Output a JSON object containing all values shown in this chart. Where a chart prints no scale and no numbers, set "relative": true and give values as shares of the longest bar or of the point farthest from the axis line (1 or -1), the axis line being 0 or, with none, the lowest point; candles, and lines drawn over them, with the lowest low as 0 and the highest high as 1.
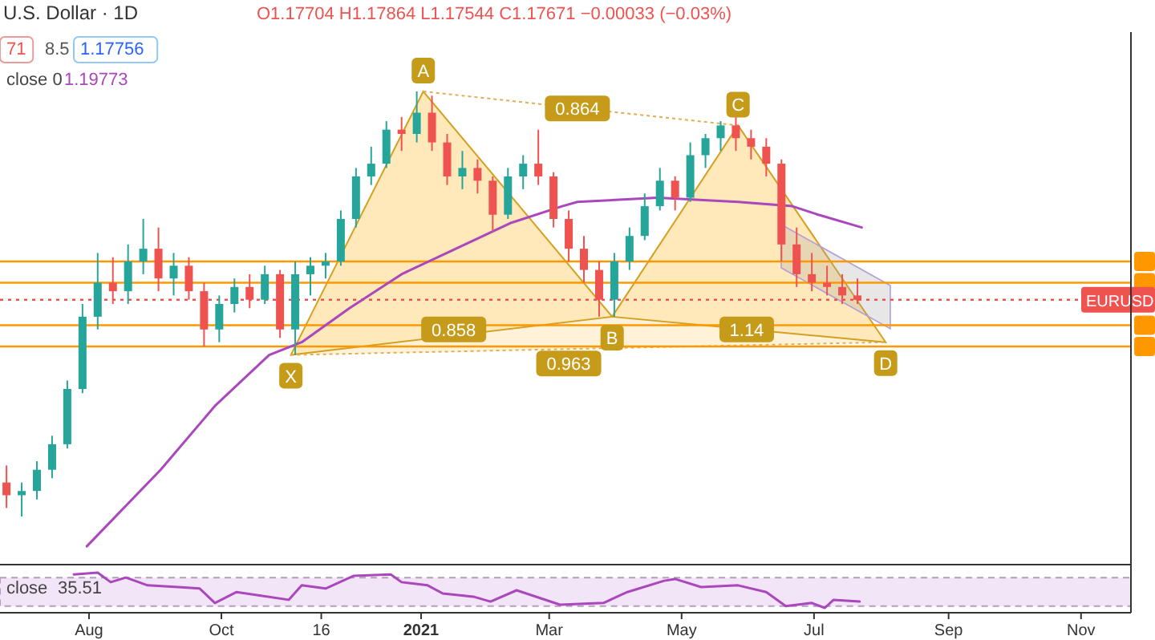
{
  "chart_data": [
    {
      "type": "candlestick",
      "title": "U.S. Dollar · 1D",
      "relative": true,
      "tick_labels": false,
      "xlim": [
        "2020-06-21",
        "2021-11-24"
      ],
      "x": [
        "2020-06-24",
        "2020-07-01",
        "2020-07-08",
        "2020-07-15",
        "2020-07-22",
        "2020-07-29",
        "2020-08-05",
        "2020-08-12",
        "2020-08-19",
        "2020-08-26",
        "2020-09-02",
        "2020-09-09",
        "2020-09-16",
        "2020-09-23",
        "2020-09-30",
        "2020-10-07",
        "2020-10-14",
        "2020-10-21",
        "2020-10-28",
        "2020-11-04",
        "2020-11-11",
        "2020-11-18",
        "2020-11-25",
        "2020-12-02",
        "2020-12-09",
        "2020-12-16",
        "2020-12-23",
        "2020-12-30",
        "2021-01-06",
        "2021-01-13",
        "2021-01-20",
        "2021-01-27",
        "2021-02-03",
        "2021-02-10",
        "2021-02-17",
        "2021-02-24",
        "2021-03-03",
        "2021-03-10",
        "2021-03-17",
        "2021-03-24",
        "2021-03-31",
        "2021-04-07",
        "2021-04-14",
        "2021-04-21",
        "2021-04-28",
        "2021-05-05",
        "2021-05-12",
        "2021-05-19",
        "2021-05-26",
        "2021-06-02",
        "2021-06-09",
        "2021-06-16",
        "2021-06-23",
        "2021-06-30",
        "2021-07-07",
        "2021-07-14",
        "2021-07-21"
      ],
      "ohlc": [
        [
          0.08,
          0.12,
          0.02,
          0.05
        ],
        [
          0.05,
          0.08,
          0,
          0.06
        ],
        [
          0.06,
          0.13,
          0.04,
          0.11
        ],
        [
          0.11,
          0.19,
          0.09,
          0.17
        ],
        [
          0.17,
          0.32,
          0.16,
          0.3
        ],
        [
          0.3,
          0.5,
          0.29,
          0.47
        ],
        [
          0.47,
          0.62,
          0.44,
          0.55
        ],
        [
          0.55,
          0.61,
          0.5,
          0.53
        ],
        [
          0.53,
          0.64,
          0.5,
          0.6
        ],
        [
          0.6,
          0.7,
          0.57,
          0.63
        ],
        [
          0.63,
          0.68,
          0.53,
          0.56
        ],
        [
          0.56,
          0.62,
          0.52,
          0.59
        ],
        [
          0.59,
          0.61,
          0.51,
          0.53
        ],
        [
          0.53,
          0.55,
          0.4,
          0.44
        ],
        [
          0.44,
          0.52,
          0.41,
          0.5
        ],
        [
          0.5,
          0.56,
          0.48,
          0.54
        ],
        [
          0.54,
          0.57,
          0.49,
          0.51
        ],
        [
          0.51,
          0.59,
          0.5,
          0.57
        ],
        [
          0.57,
          0.58,
          0.42,
          0.44
        ],
        [
          0.44,
          0.6,
          0.38,
          0.57
        ],
        [
          0.57,
          0.61,
          0.52,
          0.59
        ],
        [
          0.59,
          0.62,
          0.56,
          0.6
        ],
        [
          0.6,
          0.72,
          0.59,
          0.7
        ],
        [
          0.7,
          0.82,
          0.68,
          0.8
        ],
        [
          0.8,
          0.87,
          0.78,
          0.83
        ],
        [
          0.83,
          0.93,
          0.82,
          0.91
        ],
        [
          0.91,
          0.94,
          0.86,
          0.9
        ],
        [
          0.9,
          1,
          0.88,
          0.95
        ],
        [
          0.95,
          0.99,
          0.86,
          0.88
        ],
        [
          0.88,
          0.9,
          0.78,
          0.8
        ],
        [
          0.8,
          0.86,
          0.77,
          0.82
        ],
        [
          0.82,
          0.84,
          0.76,
          0.79
        ],
        [
          0.79,
          0.8,
          0.67,
          0.71
        ],
        [
          0.71,
          0.82,
          0.7,
          0.8
        ],
        [
          0.8,
          0.85,
          0.77,
          0.83
        ],
        [
          0.83,
          0.91,
          0.78,
          0.8
        ],
        [
          0.8,
          0.81,
          0.68,
          0.7
        ],
        [
          0.7,
          0.72,
          0.6,
          0.63
        ],
        [
          0.63,
          0.66,
          0.55,
          0.58
        ],
        [
          0.58,
          0.6,
          0.47,
          0.51
        ],
        [
          0.51,
          0.62,
          0.47,
          0.6
        ],
        [
          0.6,
          0.68,
          0.58,
          0.66
        ],
        [
          0.66,
          0.76,
          0.65,
          0.73
        ],
        [
          0.73,
          0.82,
          0.72,
          0.79
        ],
        [
          0.79,
          0.8,
          0.72,
          0.75
        ],
        [
          0.75,
          0.88,
          0.74,
          0.85
        ],
        [
          0.85,
          0.9,
          0.82,
          0.89
        ],
        [
          0.89,
          0.93,
          0.86,
          0.92
        ],
        [
          0.92,
          0.94,
          0.86,
          0.89
        ],
        [
          0.89,
          0.91,
          0.84,
          0.87
        ],
        [
          0.87,
          0.89,
          0.8,
          0.83
        ],
        [
          0.83,
          0.84,
          0.6,
          0.64
        ],
        [
          0.64,
          0.68,
          0.54,
          0.57
        ],
        [
          0.57,
          0.62,
          0.53,
          0.55
        ],
        [
          0.55,
          0.59,
          0.52,
          0.54
        ],
        [
          0.54,
          0.57,
          0.5,
          0.52
        ],
        [
          0.52,
          0.56,
          0.5,
          0.51
        ]
      ],
      "series": [
        {
          "type": "line",
          "color": "#ab47bc",
          "x": [
            "2020-07-31",
            "2020-09-03",
            "2020-09-28",
            "2020-10-23",
            "2020-11-07",
            "2020-11-29",
            "2020-12-23",
            "2021-01-17",
            "2021-02-11",
            "2021-03-07",
            "2021-03-14",
            "2021-04-20",
            "2021-05-27",
            "2021-06-21",
            "2021-07-03",
            "2021-07-23"
          ],
          "values": [
            -0.07,
            0.11,
            0.26,
            0.38,
            0.41,
            0.49,
            0.57,
            0.63,
            0.69,
            0.73,
            0.74,
            0.75,
            0.74,
            0.73,
            0.71,
            0.68
          ]
        }
      ],
      "ref_lines": [
        {
          "axis": "y",
          "value": 0.6,
          "color": "#ff9800"
        },
        {
          "axis": "y",
          "value": 0.55,
          "color": "#ff9800"
        },
        {
          "axis": "y",
          "value": 0.45,
          "color": "#ff9800"
        },
        {
          "axis": "y",
          "value": 0.4,
          "color": "#ff9800"
        },
        {
          "axis": "y",
          "value": 0.51,
          "label": "EURUSD",
          "color": "#ef5350",
          "line_style": "dotted"
        }
      ],
      "annotations": [
        {
          "text": "X",
          "x": "2020-11-02",
          "y": 0.38
        },
        {
          "text": "A",
          "x": "2021-01-02",
          "y": 1
        },
        {
          "text": "B",
          "x": "2021-03-30",
          "y": 0.47
        },
        {
          "text": "C",
          "x": "2021-05-27",
          "y": 0.92
        },
        {
          "text": "D",
          "x": "2021-08-03",
          "y": 0.41
        },
        {
          "text": "0.864",
          "x": "2021-03-14",
          "y": 0.96
        },
        {
          "text": "0.858",
          "x": "2021-01-16",
          "y": 0.44
        },
        {
          "text": "0.963",
          "x": "2021-03-10",
          "y": 0.36
        },
        {
          "text": "1.14",
          "x": "2021-05-31",
          "y": 0.44
        },
        "O1.17704 H1.17864 L1.17544 C1.17671 −0.00033 (−0.03%)",
        "71",
        "8.5",
        "1.17756",
        "close 0",
        "1.19773"
      ]
    },
    {
      "type": "line",
      "relative": true,
      "tick_labels": "x",
      "xlim": [
        "2020-06-21",
        "2021-11-24"
      ],
      "xticks": [
        {
          "value": "2020-08-01",
          "label": "Aug"
        },
        {
          "value": "2020-10-01",
          "label": "Oct"
        },
        {
          "value": "2020-11-16",
          "label": "16"
        },
        {
          "value": "2021-01-01",
          "label": "2021"
        },
        {
          "value": "2021-03-01",
          "label": "Mar"
        },
        {
          "value": "2021-05-01",
          "label": "May"
        },
        {
          "value": "2021-07-01",
          "label": "Jul"
        },
        {
          "value": "2021-09-01",
          "label": "Sep"
        },
        {
          "value": "2021-11-01",
          "label": "Nov"
        }
      ],
      "x": [
        "2020-07-25",
        "2020-08-05",
        "2020-08-11",
        "2020-08-18",
        "2020-08-28",
        "2020-09-11",
        "2020-09-21",
        "2020-09-28",
        "2020-10-08",
        "2020-10-18",
        "2020-11-01",
        "2020-11-07",
        "2020-11-18",
        "2020-12-01",
        "2020-12-18",
        "2020-12-23",
        "2021-01-04",
        "2021-01-11",
        "2021-01-25",
        "2021-02-02",
        "2021-02-14",
        "2021-03-06",
        "2021-03-26",
        "2021-04-06",
        "2021-04-23",
        "2021-04-28",
        "2021-05-10",
        "2021-05-27",
        "2021-06-09",
        "2021-06-18",
        "2021-06-30",
        "2021-07-06",
        "2021-07-10",
        "2021-07-22"
      ],
      "series": [
        {
          "color": "#ab47bc",
          "values": [
            0.95,
            1,
            0.73,
            0.86,
            0.64,
            0.59,
            0.55,
            0.14,
            0.45,
            0.36,
            0.23,
            0.64,
            0.55,
            0.91,
            0.95,
            0.73,
            0.64,
            0.41,
            0.32,
            0.18,
            0.5,
            0.09,
            0.14,
            0.45,
            0.77,
            0.82,
            0.59,
            0.64,
            0.45,
            0.05,
            0.14,
            0,
            0.23,
            0.18
          ]
        }
      ],
      "bands": [
        {
          "axis": "y",
          "from": 0.05,
          "to": 0.86,
          "color": "#f3e5f8"
        }
      ],
      "annotations": [
        "close",
        "35.51"
      ]
    }
  ]
}
